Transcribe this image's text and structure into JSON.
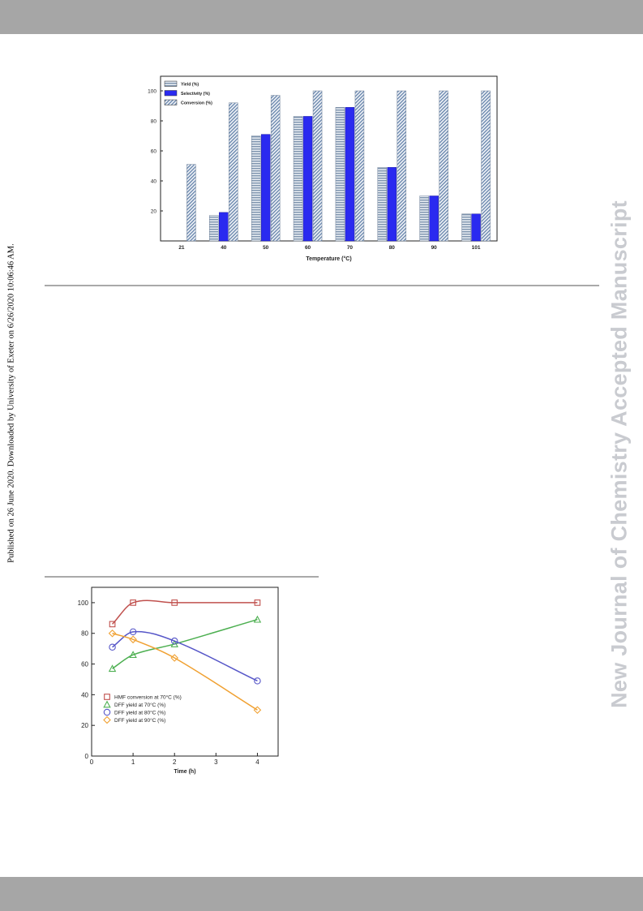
{
  "page": {
    "left_margin_text": "Published on 26 June 2020. Downloaded by University of Exeter on 6/26/2020 10:06:46 AM.",
    "right_margin_text": "New Journal of Chemistry Accepted Manuscript",
    "band_color": "#a6a6a6",
    "watermark_color": "#c9cbd0"
  },
  "chart_data": [
    {
      "type": "bar",
      "title": "",
      "xlabel": "Temperature (°C)",
      "ylabel": "",
      "categories": [
        "21",
        "40",
        "50",
        "60",
        "70",
        "80",
        "90",
        "101"
      ],
      "yticks": [
        20,
        40,
        60,
        80,
        100
      ],
      "ylim": [
        0,
        100
      ],
      "legend_position": "top-left",
      "series": [
        {
          "name": "Yield (%)",
          "pattern": "horizontal-stripes",
          "color": "#7d93ad",
          "values": [
            0,
            17,
            70,
            83,
            89,
            49,
            30,
            18
          ]
        },
        {
          "name": "Selectivity (%)",
          "pattern": "solid",
          "color": "#2a2af0",
          "values": [
            0,
            19,
            71,
            83,
            89,
            49,
            30,
            18
          ]
        },
        {
          "name": "Conversion (%)",
          "pattern": "diagonal-stripes",
          "color": "#5c7ca6",
          "values": [
            51,
            92,
            97,
            100,
            100,
            100,
            100,
            100
          ]
        }
      ]
    },
    {
      "type": "scatter",
      "title": "",
      "xlabel": "Time (h)",
      "ylabel": "",
      "xticks": [
        0,
        1,
        2,
        3,
        4
      ],
      "yticks": [
        0,
        20,
        40,
        60,
        80,
        100
      ],
      "xlim": [
        0,
        4.5
      ],
      "ylim": [
        0,
        110
      ],
      "legend_position": "bottom-left",
      "series": [
        {
          "name": "HMF conversion at 70°C (%)",
          "marker": "square",
          "color": "#c0504d",
          "x": [
            0.5,
            1,
            2,
            4
          ],
          "y": [
            86,
            100,
            100,
            100
          ]
        },
        {
          "name": "DFF yield at 70°C (%)",
          "marker": "triangle",
          "color": "#4caf50",
          "x": [
            0.5,
            1,
            2,
            4
          ],
          "y": [
            57,
            66,
            73,
            89
          ]
        },
        {
          "name": "DFF yield at 80°C (%)",
          "marker": "circle",
          "color": "#5656c8",
          "x": [
            0.5,
            1,
            2,
            4
          ],
          "y": [
            71,
            81,
            75,
            49
          ]
        },
        {
          "name": "DFF yield at 90°C (%)",
          "marker": "diamond",
          "color": "#f0a030",
          "x": [
            0.5,
            1,
            2,
            4
          ],
          "y": [
            80,
            76,
            64,
            30
          ]
        }
      ]
    }
  ]
}
